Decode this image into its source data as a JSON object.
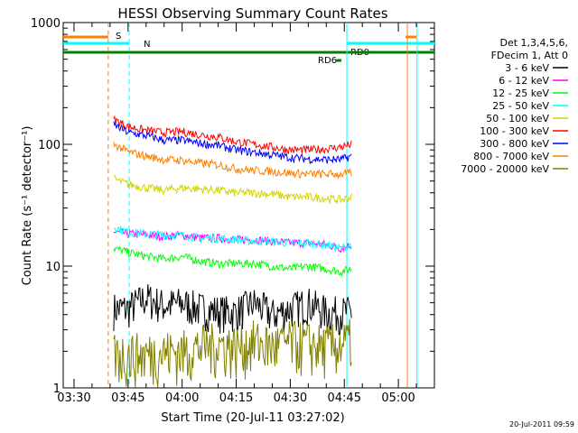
{
  "chart_data": {
    "type": "line",
    "title": "HESSI Observing Summary Count Rates",
    "xlabel": "Start Time (20-Jul-11 03:27:02)",
    "ylabel": "Count Rate (s⁻¹ detector⁻¹)",
    "y_scale": "log",
    "ylim": [
      1,
      1000
    ],
    "x_unit": "minutes of day (UT)",
    "xlim": [
      207,
      310
    ],
    "x_ticks": [
      {
        "value": 210,
        "label": "03:30"
      },
      {
        "value": 225,
        "label": "03:45"
      },
      {
        "value": 240,
        "label": "04:00"
      },
      {
        "value": 255,
        "label": "04:15"
      },
      {
        "value": 270,
        "label": "04:30"
      },
      {
        "value": 285,
        "label": "04:45"
      },
      {
        "value": 300,
        "label": "05:00"
      }
    ],
    "y_ticks": [
      {
        "value": 1,
        "label": "1"
      },
      {
        "value": 10,
        "label": "10"
      },
      {
        "value": 100,
        "label": "100"
      },
      {
        "value": 1000,
        "label": "1000"
      }
    ],
    "grid": false,
    "legend_position": "right",
    "legend_header": [
      "Det 1,3,4,5,6,",
      "FDecim 1, Att 0"
    ],
    "timestamp": "20-Jul-2011 09:59",
    "flags": [
      {
        "label": "S",
        "color": "#ff8000"
      },
      {
        "label": "N",
        "color": "#00ffff"
      },
      {
        "label": "RD6",
        "color": "#008000"
      },
      {
        "label": "RD0",
        "color": "#008000"
      }
    ],
    "x": [
      221,
      225,
      230,
      235,
      240,
      245,
      250,
      255,
      260,
      265,
      270,
      275,
      280,
      284,
      287
    ],
    "series": [
      {
        "name": "3 - 6 keV",
        "color": "#000000",
        "values": [
          4.5,
          4.5,
          5.5,
          4.8,
          5,
          4.5,
          4.3,
          4.2,
          5,
          4,
          4.5,
          5,
          4.2,
          4.2,
          4.2
        ]
      },
      {
        "name": "6 - 12 keV",
        "color": "#ff00ff",
        "values": [
          19,
          18.5,
          18,
          17.5,
          18,
          17,
          17,
          16.5,
          16.5,
          16,
          15.5,
          15.5,
          15,
          14,
          15
        ]
      },
      {
        "name": "12 - 25 keV",
        "color": "#00ff00",
        "values": [
          14,
          13,
          12,
          11.5,
          12,
          11,
          10.5,
          10.5,
          10.5,
          10,
          9.5,
          10,
          9.5,
          9,
          9.5
        ]
      },
      {
        "name": "25 - 50 keV",
        "color": "#00ffff",
        "values": [
          21,
          19,
          18.5,
          18,
          18,
          17,
          17,
          16.5,
          16,
          16,
          15.5,
          15.5,
          15,
          14,
          15
        ]
      },
      {
        "name": "50 - 100 keV",
        "color": "#d4d400",
        "values": [
          52,
          47,
          44,
          42,
          44,
          43,
          42,
          40,
          40,
          39,
          37,
          37,
          36,
          35,
          37
        ]
      },
      {
        "name": "100 - 300 keV",
        "color": "#ff0000",
        "values": [
          160,
          140,
          130,
          125,
          127,
          120,
          115,
          105,
          100,
          95,
          90,
          90,
          92,
          95,
          100
        ]
      },
      {
        "name": "300 - 800 keV",
        "color": "#0000ff",
        "values": [
          145,
          125,
          118,
          108,
          108,
          102,
          98,
          90,
          86,
          82,
          78,
          76,
          75,
          75,
          80
        ]
      },
      {
        "name": "800 - 7000 keV",
        "color": "#ff8000",
        "values": [
          100,
          87,
          80,
          75,
          74,
          70,
          68,
          63,
          61,
          60,
          58,
          57,
          57,
          57,
          58
        ]
      },
      {
        "name": "7000 - 20000 keV",
        "color": "#808000",
        "values": [
          1.9,
          1.9,
          1.9,
          2,
          2,
          2.2,
          2.3,
          2.2,
          2.4,
          2.2,
          2.4,
          2.3,
          2.2,
          2.3,
          2.5
        ]
      }
    ]
  }
}
